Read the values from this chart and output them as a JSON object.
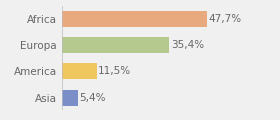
{
  "categories": [
    "Asia",
    "America",
    "Europa",
    "Africa"
  ],
  "values": [
    5.4,
    11.5,
    35.4,
    47.7
  ],
  "colors": [
    "#7b8ec8",
    "#f0c75e",
    "#b5c98e",
    "#e8a97e"
  ],
  "labels": [
    "5,4%",
    "11,5%",
    "35,4%",
    "47,7%"
  ],
  "background_color": "#f0f0f0",
  "bar_height": 0.6,
  "xlim": [
    0,
    58
  ],
  "label_fontsize": 7.5,
  "tick_fontsize": 7.5,
  "label_color": "#666666",
  "tick_color": "#666666"
}
